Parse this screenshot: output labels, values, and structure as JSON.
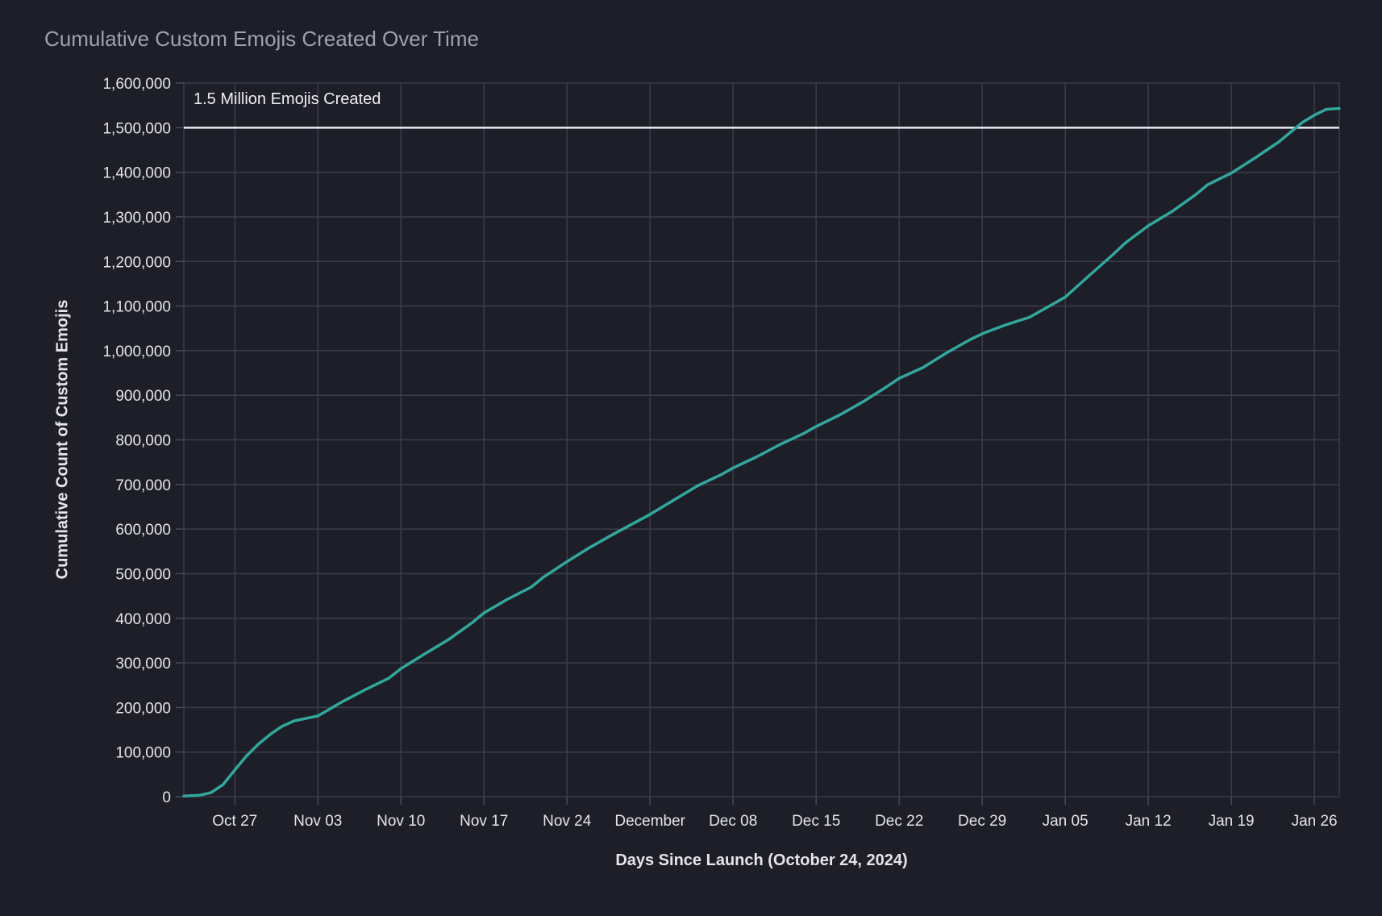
{
  "title": {
    "text": "Cumulative Custom Emojis Created Over Time"
  },
  "chart_data": {
    "type": "line",
    "title": "Cumulative Custom Emojis Created Over Time",
    "xlabel": "Days Since Launch (October 24, 2024)",
    "ylabel": "Cumulative Count of Custom Emojis",
    "legend": "none",
    "grid": true,
    "x_axis": {
      "unit": "days since launch (2024-10-24)",
      "range": [
        -1.3,
        96.1
      ],
      "tick_days": [
        3,
        10,
        17,
        24,
        31,
        38,
        45,
        52,
        59,
        66,
        73,
        80,
        87,
        94
      ],
      "tick_labels": [
        "Oct 27",
        "Nov 03",
        "Nov 10",
        "Nov 17",
        "Nov 24",
        "December",
        "Dec 08",
        "Dec 15",
        "Dec 22",
        "Dec 29",
        "Jan 05",
        "Jan 12",
        "Jan 19",
        "Jan 26"
      ]
    },
    "y_axis": {
      "range": [
        0,
        1600000
      ],
      "tick_step": 100000,
      "tick_values": [
        0,
        100000,
        200000,
        300000,
        400000,
        500000,
        600000,
        700000,
        800000,
        900000,
        1000000,
        1100000,
        1200000,
        1300000,
        1400000,
        1500000,
        1600000
      ]
    },
    "reference_line": {
      "value": 1500000,
      "label": "1.5 Million Emojis Created",
      "color": "#e9e9f0"
    },
    "series": [
      {
        "name": "Cumulative Custom Emojis",
        "color": "#2fa99b",
        "points_day_value": [
          [
            -1.3,
            1500
          ],
          [
            0,
            3000
          ],
          [
            1,
            9000
          ],
          [
            2,
            27000
          ],
          [
            3,
            60000
          ],
          [
            4,
            92000
          ],
          [
            5,
            118000
          ],
          [
            6,
            140000
          ],
          [
            7,
            158000
          ],
          [
            8,
            170000
          ],
          [
            10,
            181000
          ],
          [
            12,
            212000
          ],
          [
            14,
            240000
          ],
          [
            16,
            266000
          ],
          [
            17,
            287000
          ],
          [
            19,
            320000
          ],
          [
            21,
            352000
          ],
          [
            23,
            390000
          ],
          [
            24,
            412000
          ],
          [
            26,
            443000
          ],
          [
            28,
            470000
          ],
          [
            29,
            492000
          ],
          [
            31,
            527000
          ],
          [
            33,
            560000
          ],
          [
            35,
            590000
          ],
          [
            38,
            633000
          ],
          [
            40,
            665000
          ],
          [
            42,
            697000
          ],
          [
            44,
            722000
          ],
          [
            45,
            737000
          ],
          [
            47,
            762000
          ],
          [
            49,
            790000
          ],
          [
            51,
            815000
          ],
          [
            52,
            830000
          ],
          [
            54,
            856000
          ],
          [
            56,
            886000
          ],
          [
            58,
            920000
          ],
          [
            59,
            938000
          ],
          [
            61,
            962000
          ],
          [
            63,
            995000
          ],
          [
            65,
            1025000
          ],
          [
            66,
            1038000
          ],
          [
            68,
            1058000
          ],
          [
            70,
            1075000
          ],
          [
            72,
            1105000
          ],
          [
            73,
            1120000
          ],
          [
            75,
            1168000
          ],
          [
            77,
            1215000
          ],
          [
            78,
            1240000
          ],
          [
            80,
            1280000
          ],
          [
            82,
            1312000
          ],
          [
            84,
            1350000
          ],
          [
            85,
            1372000
          ],
          [
            87,
            1398000
          ],
          [
            89,
            1432000
          ],
          [
            91,
            1468000
          ],
          [
            93,
            1512000
          ],
          [
            94,
            1528000
          ],
          [
            95,
            1541000
          ],
          [
            96.1,
            1543000
          ]
        ]
      }
    ]
  },
  "colors": {
    "background": "#1e1e29",
    "title": "#a0a0ae",
    "grid": "#3c3c4c",
    "tick_mark": "#4a4a5c",
    "tick_label": "#e4e4ea",
    "axis_title": "#e4e4ea",
    "annotation": "#edeef3",
    "line": "#2fa99b",
    "reference_line": "#e9e9f0"
  }
}
